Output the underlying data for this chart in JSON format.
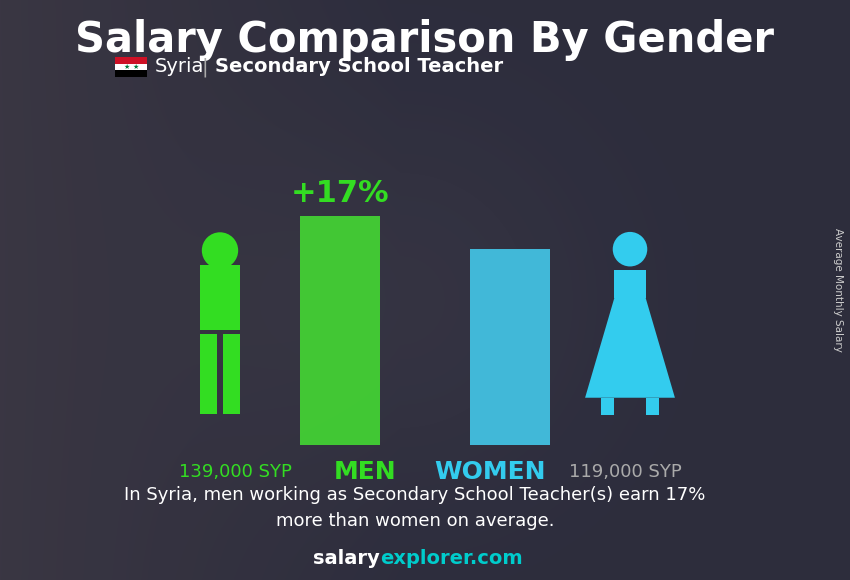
{
  "title": "Salary Comparison By Gender",
  "subtitle_country": "Syria",
  "subtitle_job": "Secondary School Teacher",
  "man_salary": 139000,
  "woman_salary": 119000,
  "man_salary_label": "139,000 SYP",
  "woman_salary_label": "119,000 SYP",
  "difference_pct": "+17%",
  "man_label": "MEN",
  "woman_label": "WOMEN",
  "bar_man_color": "#44dd33",
  "bar_woman_color": "#44ccee",
  "man_icon_color": "#33dd22",
  "woman_icon_color": "#33ccee",
  "title_color": "#ffffff",
  "subtitle_color": "#ffffff",
  "salary_label_man_color": "#33dd22",
  "salary_label_woman_color": "#aaaaaa",
  "men_label_color": "#33dd22",
  "women_label_color": "#33ccee",
  "pct_color": "#33dd22",
  "footer_text": "In Syria, men working as Secondary School Teacher(s) earn 17%\nmore than women on average.",
  "footer_color": "#ffffff",
  "brand_salary_color": "#ffffff",
  "brand_explorer_color": "#00cccc",
  "side_label": "Average Monthly Salary",
  "ylim_max": 170000,
  "bg_top_color": "#3a3a4a",
  "bg_bottom_color": "#5a5a6a"
}
